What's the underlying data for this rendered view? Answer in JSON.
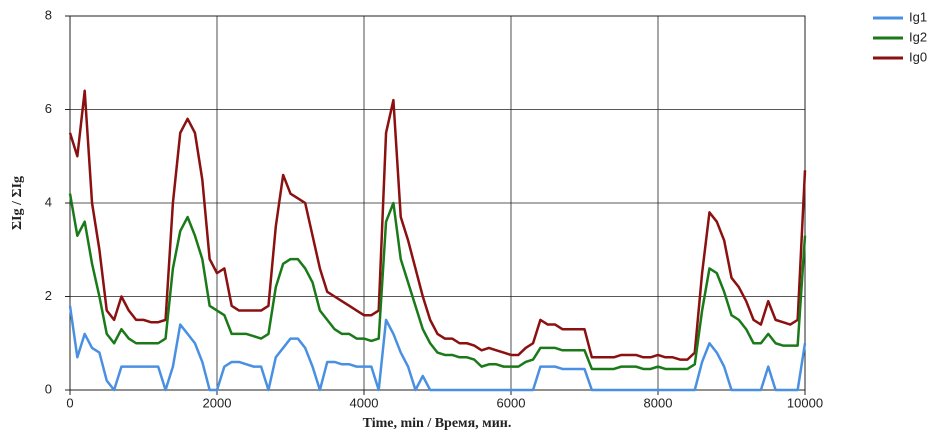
{
  "chart_data": {
    "type": "line",
    "xlabel": "Time, min / Время, мин.",
    "ylabel": "ΣIg / ΣIg",
    "xlim": [
      0,
      10000
    ],
    "ylim": [
      0,
      8
    ],
    "xticks": [
      0,
      2000,
      4000,
      6000,
      8000,
      10000
    ],
    "yticks": [
      0,
      2,
      4,
      6,
      8
    ],
    "grid": true,
    "x": [
      0,
      100,
      200,
      300,
      400,
      500,
      600,
      700,
      800,
      900,
      1000,
      1100,
      1200,
      1300,
      1400,
      1500,
      1600,
      1700,
      1800,
      1900,
      2000,
      2100,
      2200,
      2300,
      2400,
      2500,
      2600,
      2700,
      2800,
      2900,
      3000,
      3100,
      3200,
      3300,
      3400,
      3500,
      3600,
      3700,
      3800,
      3900,
      4000,
      4100,
      4200,
      4300,
      4400,
      4500,
      4600,
      4700,
      4800,
      4900,
      5000,
      5100,
      5200,
      5300,
      5400,
      5500,
      5600,
      5700,
      5800,
      5900,
      6000,
      6100,
      6200,
      6300,
      6400,
      6500,
      6600,
      6700,
      6800,
      6900,
      7000,
      7100,
      7200,
      7300,
      7400,
      7500,
      7600,
      7700,
      7800,
      7900,
      8000,
      8100,
      8200,
      8300,
      8400,
      8500,
      8600,
      8700,
      8800,
      8900,
      9000,
      9100,
      9200,
      9300,
      9400,
      9500,
      9600,
      9700,
      9800,
      9900,
      10000
    ],
    "series": [
      {
        "name": "Ig1",
        "color": "#4a90e2",
        "values": [
          1.8,
          0.7,
          1.2,
          0.9,
          0.8,
          0.2,
          0,
          0.5,
          0.5,
          0.5,
          0.5,
          0.5,
          0.5,
          0,
          0.5,
          1.4,
          1.2,
          1.0,
          0.6,
          0,
          0,
          0.5,
          0.6,
          0.6,
          0.55,
          0.5,
          0.5,
          0,
          0.7,
          0.9,
          1.1,
          1.1,
          0.9,
          0.5,
          0,
          0.6,
          0.6,
          0.55,
          0.55,
          0.5,
          0.5,
          0.5,
          0,
          1.5,
          1.2,
          0.8,
          0.5,
          0,
          0.3,
          0,
          0,
          0,
          0,
          0,
          0,
          0,
          0,
          0,
          0,
          0,
          0,
          0,
          0,
          0,
          0.5,
          0.5,
          0.5,
          0.45,
          0.45,
          0.45,
          0.45,
          0,
          0,
          0,
          0,
          0,
          0,
          0,
          0,
          0,
          0,
          0,
          0,
          0,
          0,
          0,
          0.6,
          1.0,
          0.8,
          0.5,
          0,
          0,
          0,
          0,
          0,
          0.5,
          0,
          0,
          0,
          0,
          1.0
        ]
      },
      {
        "name": "Ig2",
        "color": "#1a7a1a",
        "values": [
          4.2,
          3.3,
          3.6,
          2.7,
          2.0,
          1.2,
          1.0,
          1.3,
          1.1,
          1.0,
          1.0,
          1.0,
          1.0,
          1.1,
          2.6,
          3.4,
          3.7,
          3.3,
          2.8,
          1.8,
          1.7,
          1.6,
          1.2,
          1.2,
          1.2,
          1.15,
          1.1,
          1.2,
          2.2,
          2.7,
          2.8,
          2.8,
          2.6,
          2.3,
          1.7,
          1.5,
          1.3,
          1.2,
          1.2,
          1.1,
          1.1,
          1.05,
          1.1,
          3.6,
          4.0,
          2.8,
          2.3,
          1.8,
          1.3,
          1.0,
          0.8,
          0.75,
          0.75,
          0.7,
          0.7,
          0.65,
          0.5,
          0.55,
          0.55,
          0.5,
          0.5,
          0.5,
          0.6,
          0.65,
          0.9,
          0.9,
          0.9,
          0.85,
          0.85,
          0.85,
          0.85,
          0.45,
          0.45,
          0.45,
          0.45,
          0.5,
          0.5,
          0.5,
          0.45,
          0.45,
          0.5,
          0.45,
          0.45,
          0.45,
          0.45,
          0.55,
          1.7,
          2.6,
          2.5,
          2.1,
          1.6,
          1.5,
          1.3,
          1.0,
          1.0,
          1.2,
          1.0,
          0.95,
          0.95,
          0.95,
          3.3
        ]
      },
      {
        "name": "Ig0",
        "color": "#8b1010",
        "values": [
          5.5,
          5.0,
          6.4,
          4.0,
          3.0,
          1.7,
          1.5,
          2.0,
          1.7,
          1.5,
          1.5,
          1.45,
          1.45,
          1.5,
          4.0,
          5.5,
          5.8,
          5.5,
          4.5,
          2.8,
          2.5,
          2.6,
          1.8,
          1.7,
          1.7,
          1.7,
          1.7,
          1.8,
          3.5,
          4.6,
          4.2,
          4.1,
          4.0,
          3.3,
          2.6,
          2.1,
          2.0,
          1.9,
          1.8,
          1.7,
          1.6,
          1.6,
          1.7,
          5.5,
          6.2,
          3.7,
          3.2,
          2.6,
          2.0,
          1.5,
          1.2,
          1.1,
          1.1,
          1.0,
          1.0,
          0.95,
          0.85,
          0.9,
          0.85,
          0.8,
          0.75,
          0.75,
          0.9,
          1.0,
          1.5,
          1.4,
          1.4,
          1.3,
          1.3,
          1.3,
          1.3,
          0.7,
          0.7,
          0.7,
          0.7,
          0.75,
          0.75,
          0.75,
          0.7,
          0.7,
          0.75,
          0.7,
          0.7,
          0.65,
          0.65,
          0.8,
          2.5,
          3.8,
          3.6,
          3.2,
          2.4,
          2.2,
          1.9,
          1.5,
          1.4,
          1.9,
          1.5,
          1.45,
          1.4,
          1.5,
          4.7
        ]
      }
    ]
  }
}
